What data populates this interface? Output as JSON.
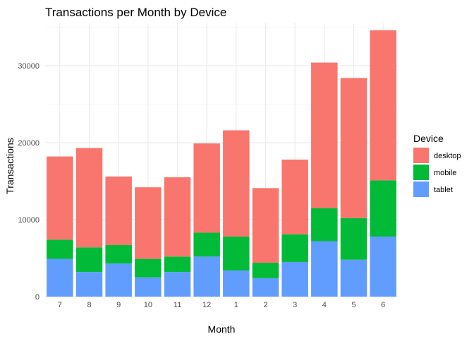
{
  "chart_data": {
    "type": "bar",
    "stacked": true,
    "title": "Transactions per Month by Device",
    "xlabel": "Month",
    "ylabel": "Transactions",
    "categories": [
      "7",
      "8",
      "9",
      "10",
      "11",
      "12",
      "1",
      "2",
      "3",
      "4",
      "5",
      "6"
    ],
    "ylim": [
      0,
      35500
    ],
    "yticks": [
      0,
      10000,
      20000,
      30000
    ],
    "grid": true,
    "legend": {
      "title": "Device",
      "position": "right",
      "entries": [
        "desktop",
        "mobile",
        "tablet"
      ]
    },
    "series": [
      {
        "name": "tablet",
        "color": "#619CFF",
        "values": [
          4900,
          3200,
          4300,
          2500,
          3200,
          5200,
          3400,
          2400,
          4500,
          7200,
          4800,
          7800
        ]
      },
      {
        "name": "mobile",
        "color": "#00BA38",
        "values": [
          2500,
          3200,
          2400,
          2400,
          2000,
          3100,
          4400,
          2000,
          3600,
          4300,
          5400,
          7300
        ]
      },
      {
        "name": "desktop",
        "color": "#F8766D",
        "values": [
          10800,
          12900,
          8900,
          9300,
          10300,
          11600,
          13800,
          9700,
          9700,
          18900,
          18200,
          19500
        ]
      }
    ]
  }
}
